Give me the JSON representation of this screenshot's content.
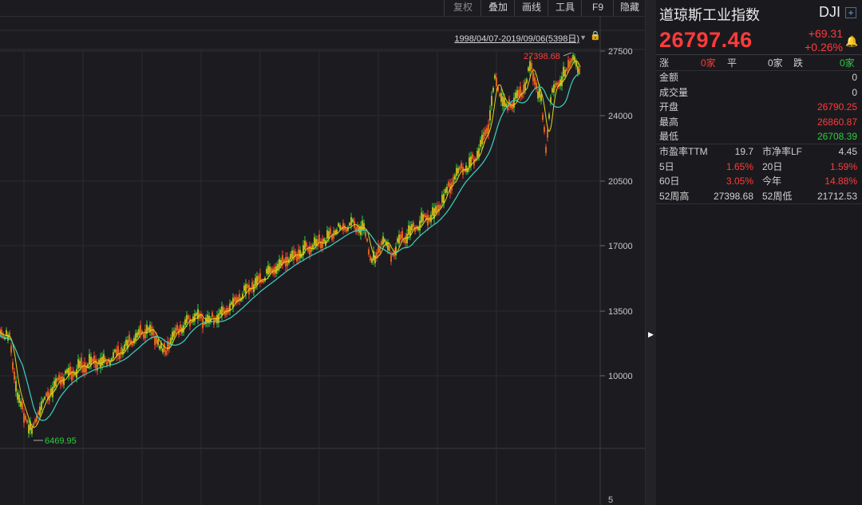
{
  "toolbar": {
    "items": [
      "复权",
      "叠加",
      "画线",
      "工具",
      "F9",
      "隐藏"
    ]
  },
  "chart": {
    "range_label": "1998/04/07-2019/09/06(5398日)",
    "y_ticks": [
      "27500",
      "24000",
      "20500",
      "17000",
      "13500",
      "10000"
    ],
    "lower_tick": "5",
    "high_marker": "27398.68",
    "low_marker": "6469.95"
  },
  "quote": {
    "name": "道琼斯工业指数",
    "code": "DJI",
    "price": "26797.46",
    "change": "+69.31",
    "change_pct": "+0.26%",
    "breadth": {
      "up_label": "涨",
      "up_value": "0家",
      "flat_label": "平",
      "flat_value": "0家",
      "down_label": "跌",
      "down_value": "0家"
    },
    "rows": [
      {
        "label": "金额",
        "value": "0",
        "tone": "neutral"
      },
      {
        "label": "成交量",
        "value": "0",
        "tone": "neutral"
      },
      {
        "label": "开盘",
        "value": "26790.25",
        "tone": "red"
      },
      {
        "label": "最高",
        "value": "26860.87",
        "tone": "red"
      },
      {
        "label": "最低",
        "value": "26708.39",
        "tone": "green"
      }
    ],
    "stats": [
      {
        "l1": "市盈率TTM",
        "v1": "19.7",
        "t1": "neutral",
        "l2": "市净率LF",
        "v2": "4.45",
        "t2": "neutral"
      },
      {
        "l1": "5日",
        "v1": "1.65%",
        "t1": "red",
        "l2": "20日",
        "v2": "1.59%",
        "t2": "red"
      },
      {
        "l1": "60日",
        "v1": "3.05%",
        "t1": "red",
        "l2": "今年",
        "v2": "14.88%",
        "t2": "red"
      },
      {
        "l1": "52周高",
        "v1": "27398.68",
        "t1": "neutral",
        "l2": "52周低",
        "v2": "21712.53",
        "t2": "neutral"
      }
    ]
  },
  "colors": {
    "up": "#ff3b3b",
    "down": "#2ecc40",
    "ma_short": "#e8d21a",
    "ma_long": "#40d0c0",
    "candle_body": "#ff7a1a"
  },
  "icons": [
    "lock-icon",
    "range-arrow-icon",
    "plus-icon",
    "bell-icon",
    "collapse-arrow-icon"
  ]
}
